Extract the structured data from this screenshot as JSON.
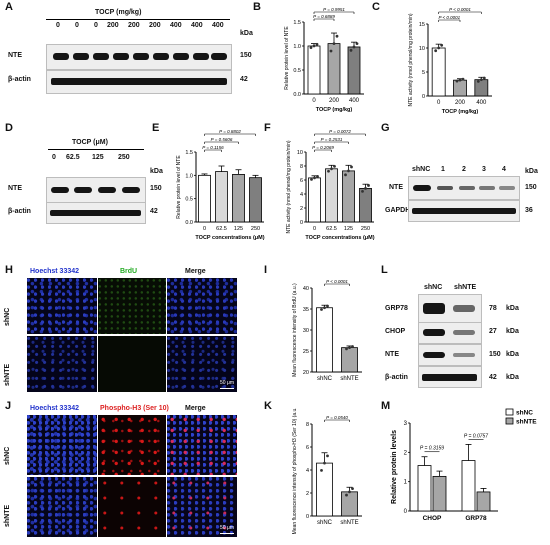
{
  "panels": {
    "A": {
      "letter": "A",
      "header": "TOCP (mg/kg)",
      "lanes": [
        "0",
        "0",
        "0",
        "200",
        "200",
        "200",
        "400",
        "400",
        "400"
      ],
      "kda_header": "kDa",
      "rows": [
        {
          "label": "NTE",
          "kda": "150"
        },
        {
          "label": "β-actin",
          "kda": "42"
        }
      ]
    },
    "B": {
      "letter": "B",
      "p1": "P = 0.6889",
      "p2": "P = 0.9951"
    },
    "C": {
      "letter": "C",
      "p1": "P < 0.0001",
      "p2": "P < 0.0001"
    },
    "D": {
      "letter": "D",
      "header": "TOCP (μM)",
      "lanes": [
        "0",
        "62.5",
        "125",
        "250"
      ],
      "kda_header": "kDa",
      "rows": [
        {
          "label": "NTE",
          "kda": "150"
        },
        {
          "label": "β-actin",
          "kda": "42"
        }
      ]
    },
    "E": {
      "letter": "E",
      "p1": "P = 0.1156",
      "p2": "P = 0.5606",
      "p3": "P = 0.8802"
    },
    "F": {
      "letter": "F",
      "p1": "P = 0.2069",
      "p2": "P = 0.2531",
      "p3": "P = 0.0072"
    },
    "G": {
      "letter": "G",
      "lanes": [
        "shNC",
        "1",
        "2",
        "3",
        "4"
      ],
      "kda_header": "kDa",
      "rows": [
        {
          "label": "NTE",
          "kda": "150"
        },
        {
          "label": "GAPDH",
          "kda": "36"
        }
      ]
    },
    "H": {
      "letter": "H",
      "columns": [
        "Hoechst 33342",
        "BrdU",
        "Merge"
      ],
      "rows": [
        "shNC",
        "shNTE"
      ],
      "scale": "50 μm"
    },
    "I": {
      "letter": "I",
      "p": "P < 0.0001"
    },
    "J": {
      "letter": "J",
      "columns": [
        "Hoechst 33342",
        "Phospho-H3 (Ser 10)",
        "Merge"
      ],
      "rows": [
        "shNC",
        "shNTE"
      ],
      "scale": "50 μm"
    },
    "K": {
      "letter": "K",
      "p": "P = 0.0540"
    },
    "L": {
      "letter": "L",
      "lanes": [
        "shNC",
        "shNTE"
      ],
      "rows": [
        {
          "label": "GRP78",
          "kda": "78",
          "unit": "kDa"
        },
        {
          "label": "CHOP",
          "kda": "27",
          "unit": "kDa"
        },
        {
          "label": "NTE",
          "kda": "150",
          "unit": "kDa"
        },
        {
          "label": "β-actin",
          "kda": "42",
          "unit": "kDa"
        }
      ]
    },
    "M": {
      "letter": "M",
      "p1": "P = 0.3159",
      "p2": "P = 0.0757"
    }
  },
  "colors": {
    "blue_title": "#2233cc",
    "green_title": "#22aa22",
    "red_title": "#dd2222",
    "bar_white": "#ffffff",
    "bar_light": "#d9d9d9",
    "bar_gray": "#a6a6a6",
    "bar_dark": "#7f7f7f"
  },
  "chart_data": [
    {
      "panel": "B",
      "type": "bar",
      "categories": [
        "0",
        "200",
        "400"
      ],
      "values": [
        1.0,
        1.05,
        0.98
      ],
      "errors": [
        0.05,
        0.22,
        0.1
      ],
      "ylabel": "Relative protein level of NTE",
      "xlabel": "TOCP (mg/kg)",
      "ylim": [
        0,
        1.5
      ],
      "yticks": [
        "0.0",
        "0.5",
        "1.0",
        "1.5"
      ]
    },
    {
      "panel": "C",
      "type": "bar",
      "categories": [
        "0",
        "200",
        "400"
      ],
      "values": [
        10.0,
        3.3,
        3.4
      ],
      "errors": [
        0.8,
        0.3,
        0.5
      ],
      "ylabel": "NTE activity (nmol phenol/mg protein/min)",
      "xlabel": "TOCP (mg/kg)",
      "ylim": [
        0,
        15
      ],
      "yticks": [
        "0",
        "5",
        "10",
        "15"
      ]
    },
    {
      "panel": "E",
      "type": "bar",
      "categories": [
        "0",
        "62.5",
        "125",
        "250"
      ],
      "values": [
        1.0,
        1.08,
        1.02,
        0.95
      ],
      "errors": [
        0.03,
        0.12,
        0.1,
        0.05
      ],
      "ylabel": "Relative protein level of NTE",
      "xlabel": "TOCP concentrations (μM)",
      "ylim": [
        0,
        1.5
      ],
      "yticks": [
        "0.0",
        "0.5",
        "1.0",
        "1.5"
      ]
    },
    {
      "panel": "F",
      "type": "bar",
      "categories": [
        "0",
        "62.5",
        "125",
        "250"
      ],
      "values": [
        6.3,
        7.6,
        7.3,
        4.8
      ],
      "errors": [
        0.3,
        0.5,
        0.8,
        0.6
      ],
      "ylabel": "NTE activity (nmol phenol/mg protein/min)",
      "xlabel": "TOCP concentrations (μM)",
      "ylim": [
        0,
        10
      ],
      "yticks": [
        "0",
        "2",
        "4",
        "6",
        "8",
        "10"
      ]
    },
    {
      "panel": "I",
      "type": "bar",
      "categories": [
        "shNC",
        "shNTE"
      ],
      "values": [
        35.3,
        25.8
      ],
      "errors": [
        0.6,
        0.4
      ],
      "ylabel": "Mean fluorescence intensity of BrdU (a.u.)",
      "xlabel": "",
      "ylim": [
        20,
        40
      ],
      "yticks": [
        "20",
        "25",
        "30",
        "35",
        "40"
      ]
    },
    {
      "panel": "K",
      "type": "bar",
      "categories": [
        "shNC",
        "shNTE"
      ],
      "values": [
        4.6,
        2.1
      ],
      "errors": [
        0.9,
        0.4
      ],
      "ylabel": "Mean fluorescence intensity of phospho-H3 (Ser 10) (a.u.)",
      "xlabel": "",
      "ylim": [
        0,
        8
      ],
      "yticks": [
        "0",
        "2",
        "4",
        "6",
        "8"
      ]
    },
    {
      "panel": "M",
      "type": "bar",
      "categories": [
        "CHOP",
        "GRP78"
      ],
      "series": [
        {
          "name": "shNC",
          "values": [
            1.55,
            1.72
          ],
          "errors": [
            0.3,
            0.55
          ]
        },
        {
          "name": "shNTE",
          "values": [
            1.18,
            0.65
          ],
          "errors": [
            0.18,
            0.12
          ]
        }
      ],
      "ylabel": "Relative protein levels",
      "xlabel": "",
      "ylim": [
        0,
        3
      ],
      "yticks": [
        "0",
        "1",
        "2",
        "3"
      ]
    }
  ]
}
